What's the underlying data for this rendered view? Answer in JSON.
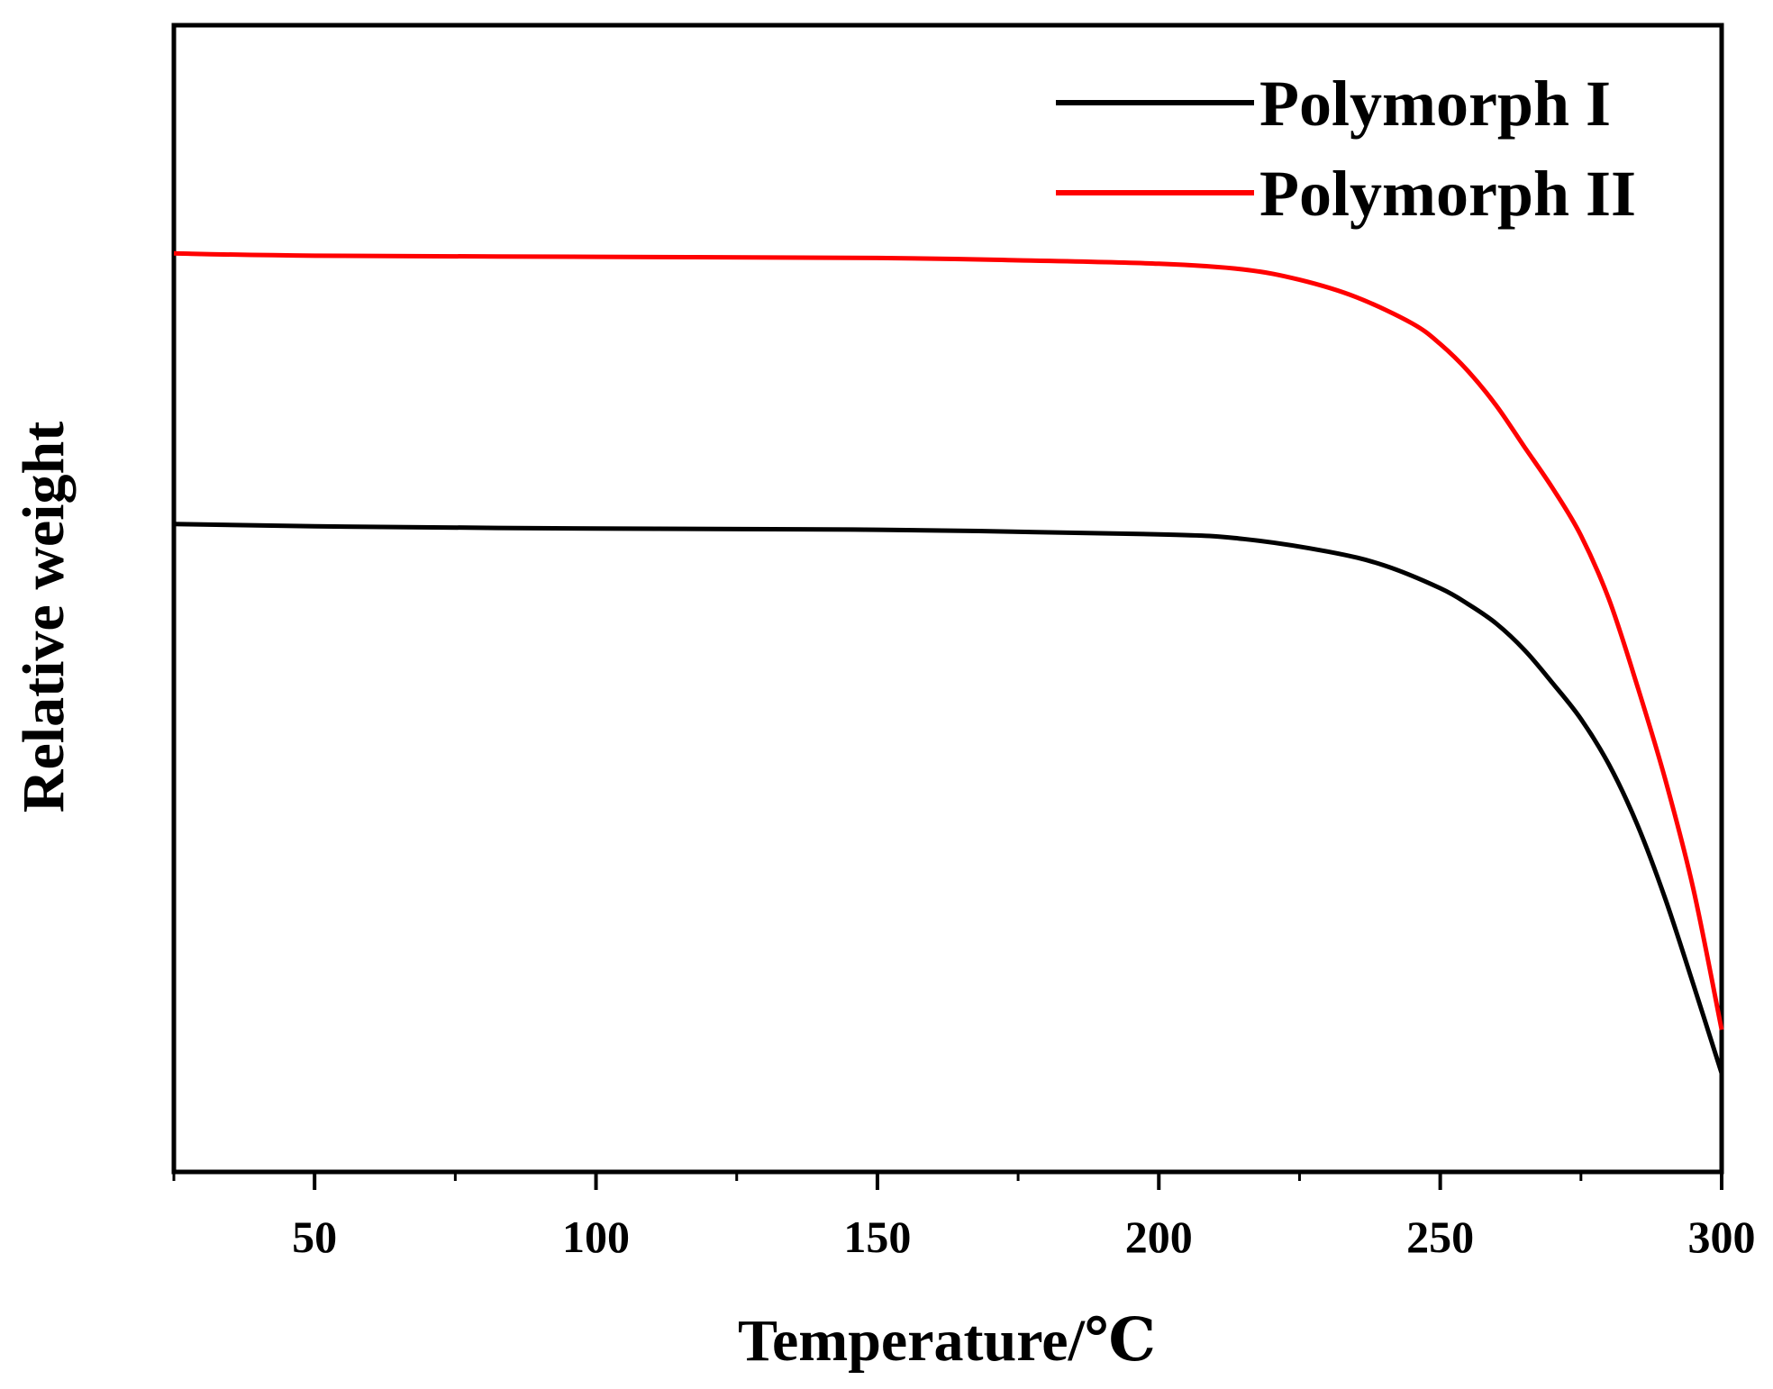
{
  "chart_data": {
    "type": "line",
    "title": "",
    "xlabel": "Temperature/℃",
    "ylabel": "Relative  weight",
    "xlim": [
      25,
      300
    ],
    "ylim": [
      0,
      100
    ],
    "xticks": [
      50,
      100,
      150,
      200,
      250,
      300
    ],
    "yticks": [],
    "grid": false,
    "legend": "top-right",
    "series": [
      {
        "name": "Polymorph I",
        "color": "#000000",
        "x": [
          25,
          50,
          100,
          150,
          200,
          215,
          230,
          240,
          250,
          255,
          260,
          265,
          270,
          275,
          280,
          285,
          290,
          295,
          300
        ],
        "y": [
          56.5,
          56.3,
          56.1,
          56.0,
          55.6,
          55.2,
          54.1,
          52.9,
          50.9,
          49.5,
          47.8,
          45.5,
          42.6,
          39.5,
          35.5,
          30.3,
          23.8,
          16.3,
          8.6
        ]
      },
      {
        "name": "Polymorph II",
        "color": "#ff0000",
        "x": [
          25,
          50,
          100,
          150,
          175,
          200,
          215,
          225,
          235,
          245,
          250,
          255,
          260,
          265,
          270,
          275,
          280,
          285,
          290,
          295,
          300
        ],
        "y": [
          80.1,
          79.9,
          79.8,
          79.7,
          79.5,
          79.2,
          78.7,
          77.8,
          76.3,
          74.0,
          72.2,
          69.8,
          66.8,
          63.2,
          59.6,
          55.5,
          49.9,
          42.4,
          34.2,
          24.6,
          12.4
        ]
      }
    ]
  }
}
